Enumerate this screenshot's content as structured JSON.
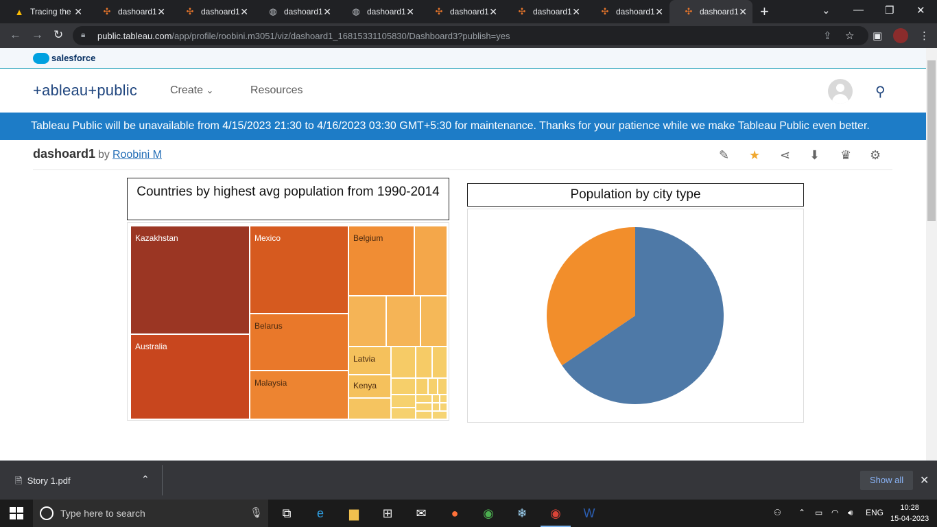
{
  "browser": {
    "tabs": [
      {
        "title": "Tracing the",
        "icon": "google-drive-icon"
      },
      {
        "title": "dashoard1",
        "icon": "tableau-icon"
      },
      {
        "title": "dashoard1",
        "icon": "tableau-icon"
      },
      {
        "title": "dashoard1",
        "icon": "globe-icon"
      },
      {
        "title": "dashoard1",
        "icon": "globe-icon"
      },
      {
        "title": "dashoard1",
        "icon": "tableau-icon"
      },
      {
        "title": "dashoard1",
        "icon": "tableau-icon"
      },
      {
        "title": "dashoard1",
        "icon": "tableau-icon"
      },
      {
        "title": "dashoard1",
        "icon": "tableau-icon"
      }
    ],
    "active_tab": 8,
    "url_host": "public.tableau.com",
    "url_path": "/app/profile/roobini.m3051/viz/dashoard1_16815331105830/Dashboard3?publish=yes"
  },
  "salesforce": {
    "label": "salesforce"
  },
  "header": {
    "logo": "+ableau+public",
    "nav": [
      {
        "label": "Create"
      },
      {
        "label": "Resources"
      }
    ]
  },
  "banner": {
    "text": "Tableau Public will be unavailable from 4/15/2023 21:30 to 4/16/2023 03:30 GMT+5:30 for maintenance. Thanks for your patience while we make Tableau Public even better."
  },
  "viz": {
    "name": "dashoard1",
    "by": "by",
    "author": "Roobini M"
  },
  "treemap": {
    "title": "Countries by highest avg population from 1990-2014",
    "labels": {
      "kazakhstan": "Kazakhstan",
      "australia": "Australia",
      "mexico": "Mexico",
      "belarus": "Belarus",
      "malaysia": "Malaysia",
      "belgium": "Belgium",
      "latvia": "Latvia",
      "kenya": "Kenya"
    },
    "colors": {
      "dark": "#9b3623",
      "red": "#c8461e",
      "orange_dark": "#d65a1f",
      "orange": "#e9782a",
      "orange_light": "#f08d34",
      "amber": "#f4a74a",
      "yellow": "#f5c15c",
      "pale": "#f6cf6a"
    }
  },
  "chart_data": {
    "type": "pie",
    "title": "Population by city type",
    "slices": [
      {
        "value": 65.5,
        "color": "#4e79a7"
      },
      {
        "value": 34.5,
        "color": "#f28e2b"
      }
    ]
  },
  "downloads": {
    "file": "Story 1.pdf",
    "show_all": "Show all"
  },
  "taskbar": {
    "search_placeholder": "Type here to search",
    "language": "ENG",
    "time": "10:28",
    "date": "15-04-2023"
  }
}
